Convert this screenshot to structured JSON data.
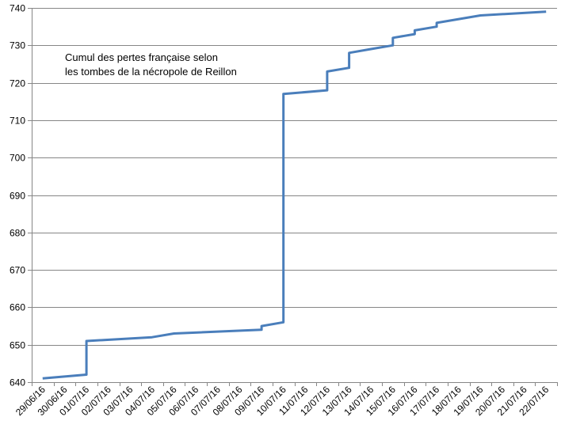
{
  "chart_data": {
    "type": "line",
    "title_lines": [
      "Cumul des pertes française selon",
      "les tombes de la nécropole de Reillon"
    ],
    "categories": [
      "29/06/16",
      "30/06/16",
      "01/07/16",
      "02/07/16",
      "03/07/16",
      "04/07/16",
      "05/07/16",
      "06/07/16",
      "07/07/16",
      "08/07/16",
      "09/07/16",
      "10/07/16",
      "11/07/16",
      "12/07/16",
      "13/07/16",
      "14/07/16",
      "15/07/16",
      "16/07/16",
      "17/07/16",
      "18/07/16",
      "19/07/16",
      "20/07/16",
      "21/07/16",
      "22/07/16"
    ],
    "yticks": [
      "640",
      "650",
      "660",
      "670",
      "680",
      "690",
      "700",
      "710",
      "720",
      "730",
      "740"
    ],
    "ylim": [
      640,
      740
    ],
    "grid": true,
    "line_color": "#4a7ebb",
    "series": [
      {
        "points": [
          [
            0,
            641
          ],
          [
            2,
            642
          ],
          [
            2,
            651
          ],
          [
            5,
            652
          ],
          [
            6,
            653
          ],
          [
            10,
            654
          ],
          [
            10,
            655
          ],
          [
            11,
            656
          ],
          [
            11,
            717
          ],
          [
            13,
            718
          ],
          [
            13,
            723
          ],
          [
            14,
            724
          ],
          [
            14,
            728
          ],
          [
            15,
            729
          ],
          [
            16,
            730
          ],
          [
            16,
            732
          ],
          [
            17,
            733
          ],
          [
            17,
            734
          ],
          [
            18,
            735
          ],
          [
            18,
            736
          ],
          [
            20,
            738
          ],
          [
            23,
            739
          ]
        ]
      }
    ]
  }
}
